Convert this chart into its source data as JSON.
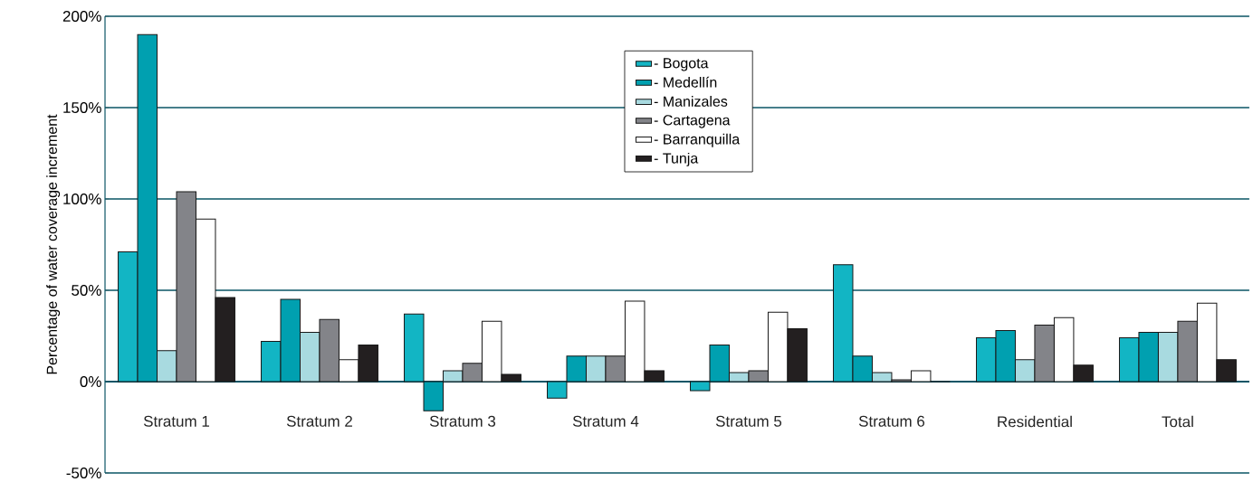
{
  "chart_data": {
    "type": "bar",
    "ylabel": "Percentage of water coverage increment",
    "categories": [
      "Stratum 1",
      "Stratum 2",
      "Stratum 3",
      "Stratum 4",
      "Stratum 5",
      "Stratum 6",
      "Residential",
      "Total"
    ],
    "series": [
      {
        "name": "- Bogota",
        "color": "#12b5c4",
        "values": [
          71,
          22,
          37,
          -9,
          -5,
          64,
          24,
          24
        ]
      },
      {
        "name": "- Medellín",
        "color": "#00a0b0",
        "values": [
          190,
          45,
          -16,
          14,
          20,
          14,
          28,
          27
        ]
      },
      {
        "name": "- Manizales",
        "color": "#a8dae0",
        "values": [
          17,
          27,
          6,
          14,
          5,
          5,
          12,
          27
        ]
      },
      {
        "name": "- Cartagena",
        "color": "#838489",
        "values": [
          104,
          34,
          10,
          14,
          6,
          1,
          31,
          33
        ]
      },
      {
        "name": "- Barranquilla",
        "color": "#ffffff",
        "values": [
          89,
          12,
          33,
          44,
          38,
          6,
          35,
          43
        ]
      },
      {
        "name": "- Tunja",
        "color": "#231f20",
        "values": [
          46,
          20,
          4,
          6,
          29,
          0,
          9,
          12
        ]
      }
    ],
    "ylim": [
      -50,
      200
    ],
    "yticks": [
      {
        "value": -50,
        "label": "-50%"
      },
      {
        "value": 0,
        "label": "0%"
      },
      {
        "value": 50,
        "label": "50%"
      },
      {
        "value": 100,
        "label": "100%"
      },
      {
        "value": 150,
        "label": "150%"
      },
      {
        "value": 200,
        "label": "200%"
      }
    ],
    "grid": "y",
    "legend": "top"
  }
}
